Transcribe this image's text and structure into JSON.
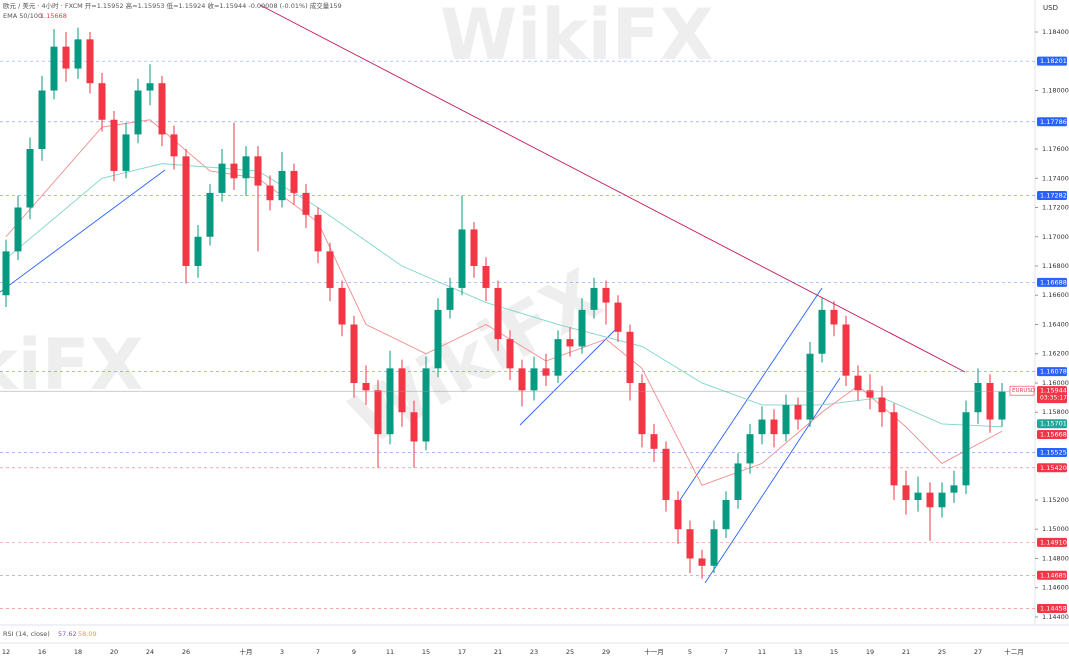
{
  "chart_data": {
    "type": "candlestick",
    "header": "欧元 / 美元 · 4小时 · FXCM  开=1.15952 高=1.15953 低=1.15924 收=1.15944 -0.00008 (-0.01%) 成交量159",
    "indicator": "EMA 50/100",
    "indicator_values": [
      "1.15668",
      "1.15701"
    ],
    "rsi_label": "RSI (14, close)",
    "rsi_values": [
      "57.62",
      "58.09"
    ],
    "currency": "USD",
    "symbol": "EURUSD",
    "countdown": "03:35:17",
    "watermark": "WikiFX",
    "up_color": "#089981",
    "down_color": "#f23645",
    "categories": [
      "12",
      null,
      null,
      "16",
      null,
      null,
      "18",
      null,
      null,
      "20",
      null,
      null,
      "24",
      null,
      null,
      "26",
      null,
      null,
      null,
      null,
      "十月",
      null,
      null,
      "3",
      null,
      null,
      "7",
      null,
      null,
      "9",
      null,
      null,
      "11",
      null,
      null,
      "15",
      null,
      null,
      "17",
      null,
      null,
      "21",
      null,
      null,
      "23",
      null,
      null,
      "25",
      null,
      null,
      "29",
      null,
      null,
      null,
      "十一月",
      null,
      null,
      "5",
      null,
      null,
      "7",
      null,
      null,
      "11",
      null,
      null,
      "13",
      null,
      null,
      "15",
      null,
      null,
      "19",
      null,
      null,
      "21",
      null,
      null,
      "25",
      null,
      null,
      "27",
      null,
      null,
      "十二月"
    ],
    "open": [
      1.166,
      1.169,
      1.172,
      1.176,
      1.18,
      1.183,
      1.1815,
      1.1835,
      1.1805,
      1.178,
      1.1745,
      1.177,
      1.18,
      1.1805,
      1.177,
      1.1755,
      1.168,
      1.17,
      1.173,
      1.175,
      1.174,
      1.1755,
      1.1735,
      1.1725,
      1.1745,
      1.173,
      1.1715,
      1.169,
      1.1665,
      1.164,
      1.16,
      1.1595,
      1.1565,
      1.161,
      1.158,
      1.156,
      1.161,
      1.165,
      1.1665,
      1.1705,
      1.168,
      1.1665,
      1.163,
      1.161,
      1.1595,
      1.161,
      1.1605,
      1.163,
      1.1625,
      1.165,
      1.1665,
      1.1655,
      1.1635,
      1.16,
      1.1565,
      1.1555,
      1.152,
      1.15,
      1.148,
      1.1475,
      1.15,
      1.152,
      1.1545,
      1.1565,
      1.1575,
      1.1565,
      1.1585,
      1.1575,
      1.162,
      1.165,
      1.164,
      1.1605,
      1.1595,
      1.159,
      1.158,
      1.153,
      1.152,
      1.1525,
      1.1515,
      1.1525,
      1.153,
      1.158,
      1.16,
      1.1575,
      null
    ],
    "high": [
      1.1698,
      1.1728,
      1.1768,
      1.181,
      1.1842,
      1.184,
      1.1843,
      1.184,
      1.1812,
      1.1786,
      1.1778,
      1.1808,
      1.1818,
      1.181,
      1.1776,
      1.176,
      1.1708,
      1.1736,
      1.176,
      1.1778,
      1.1762,
      1.1762,
      1.1742,
      1.1758,
      1.175,
      1.1736,
      1.172,
      1.1696,
      1.167,
      1.1646,
      1.1612,
      1.1602,
      1.1622,
      1.1616,
      1.1588,
      1.1618,
      1.1658,
      1.1672,
      1.1728,
      1.171,
      1.1686,
      1.167,
      1.1636,
      1.1616,
      1.1618,
      1.162,
      1.1636,
      1.1638,
      1.1658,
      1.1672,
      1.167,
      1.166,
      1.164,
      1.1606,
      1.1572,
      1.156,
      1.1526,
      1.1506,
      1.1486,
      1.1506,
      1.1526,
      1.1552,
      1.1572,
      1.1584,
      1.1582,
      1.1592,
      1.159,
      1.1628,
      1.1658,
      1.1656,
      1.1646,
      1.1612,
      1.1606,
      1.1598,
      1.1586,
      1.154,
      1.1536,
      1.1532,
      1.1532,
      1.154,
      1.1588,
      1.161,
      1.1606,
      1.16,
      null
    ],
    "low": [
      1.1652,
      1.1684,
      1.1712,
      1.1752,
      1.1794,
      1.1806,
      1.1808,
      1.1798,
      1.1772,
      1.1738,
      1.174,
      1.1764,
      1.179,
      1.1762,
      1.1746,
      1.1668,
      1.1672,
      1.1694,
      1.1724,
      1.1732,
      1.1728,
      1.169,
      1.1718,
      1.172,
      1.1722,
      1.1706,
      1.1682,
      1.1656,
      1.1632,
      1.159,
      1.1585,
      1.1542,
      1.1558,
      1.157,
      1.1542,
      1.1554,
      1.1604,
      1.1644,
      1.166,
      1.1672,
      1.1656,
      1.1622,
      1.1602,
      1.1584,
      1.1588,
      1.1598,
      1.16,
      1.1618,
      1.162,
      1.1644,
      1.164,
      1.1628,
      1.1588,
      1.1556,
      1.1546,
      1.1512,
      1.149,
      1.147,
      1.1466,
      1.147,
      1.1494,
      1.1514,
      1.1538,
      1.1558,
      1.1556,
      1.156,
      1.1568,
      1.157,
      1.1614,
      1.1632,
      1.1598,
      1.1588,
      1.1582,
      1.157,
      1.152,
      1.151,
      1.1512,
      1.1492,
      1.1508,
      1.1518,
      1.1524,
      1.1572,
      1.1566,
      1.157,
      null
    ],
    "close": [
      1.169,
      1.172,
      1.176,
      1.18,
      1.183,
      1.1815,
      1.1835,
      1.1805,
      1.178,
      1.1745,
      1.177,
      1.18,
      1.1805,
      1.177,
      1.1755,
      1.168,
      1.17,
      1.173,
      1.175,
      1.174,
      1.1755,
      1.1735,
      1.1725,
      1.1745,
      1.173,
      1.1715,
      1.169,
      1.1665,
      1.164,
      1.16,
      1.1595,
      1.1565,
      1.161,
      1.158,
      1.156,
      1.161,
      1.165,
      1.1665,
      1.1705,
      1.168,
      1.1665,
      1.163,
      1.161,
      1.1595,
      1.161,
      1.1605,
      1.163,
      1.1625,
      1.165,
      1.1665,
      1.1655,
      1.1635,
      1.16,
      1.1565,
      1.1555,
      1.152,
      1.15,
      1.148,
      1.1475,
      1.15,
      1.152,
      1.1545,
      1.1565,
      1.1575,
      1.1565,
      1.1585,
      1.1575,
      1.162,
      1.165,
      1.164,
      1.1605,
      1.1595,
      1.159,
      1.158,
      1.153,
      1.152,
      1.1525,
      1.1515,
      1.1525,
      1.153,
      1.158,
      1.16,
      1.1575,
      1.1594,
      null
    ],
    "ema_lines": [
      {
        "color": "#f28b8b",
        "x": [
          0,
          8,
          12,
          17,
          21,
          26,
          30,
          35,
          40,
          45,
          50,
          53,
          58,
          63,
          68,
          71,
          75,
          78,
          83
        ],
        "values": [
          1.17,
          1.1775,
          1.178,
          1.1745,
          1.174,
          1.171,
          1.164,
          1.162,
          1.164,
          1.1615,
          1.163,
          1.161,
          1.153,
          1.1545,
          1.158,
          1.1598,
          1.157,
          1.1545,
          1.1567
        ]
      },
      {
        "color": "#7fd6c8",
        "x": [
          0,
          8,
          13,
          21,
          26,
          33,
          40,
          46,
          53,
          58,
          63,
          68,
          73,
          78,
          83
        ],
        "values": [
          1.1685,
          1.174,
          1.175,
          1.1745,
          1.172,
          1.168,
          1.1655,
          1.164,
          1.1625,
          1.16,
          1.1585,
          1.1585,
          1.159,
          1.1572,
          1.157
        ]
      }
    ],
    "ylim": [
      1.14345,
      1.18619
    ],
    "yticks": [
      {
        "value": 1.184,
        "label": "1.18400"
      },
      {
        "value": 1.18,
        "label": "1.18000"
      },
      {
        "value": 1.176,
        "label": "1.17600"
      },
      {
        "value": 1.174,
        "label": "1.17400"
      },
      {
        "value": 1.172,
        "label": "1.17200"
      },
      {
        "value": 1.17,
        "label": "1.17000"
      },
      {
        "value": 1.168,
        "label": "1.16800"
      },
      {
        "value": 1.166,
        "label": "1.16600"
      },
      {
        "value": 1.164,
        "label": "1.16400"
      },
      {
        "value": 1.162,
        "label": "1.16200"
      },
      {
        "value": 1.16,
        "label": "1.16000"
      },
      {
        "value": 1.158,
        "label": "1.15800"
      },
      {
        "value": 1.152,
        "label": "1.15200"
      },
      {
        "value": 1.15,
        "label": "1.15000"
      },
      {
        "value": 1.148,
        "label": "1.14800"
      },
      {
        "value": 1.146,
        "label": "1.14600"
      },
      {
        "value": 1.144,
        "label": "1.14400"
      }
    ],
    "levels": [
      {
        "value": 1.18201,
        "label": "1.18201",
        "color": "#2962ff"
      },
      {
        "value": 1.17786,
        "label": "1.17786",
        "color": "#2962ff"
      },
      {
        "value": 1.17282,
        "label": "1.17282",
        "color": "#2962ff"
      },
      {
        "value": 1.16688,
        "label": "1.16688",
        "color": "#2962ff"
      },
      {
        "value": 1.16078,
        "label": "1.16078",
        "color": "#2962ff"
      },
      {
        "value": 1.15525,
        "label": "1.15525",
        "color": "#2962ff"
      },
      {
        "value": 1.1542,
        "label": "1.15420",
        "color": "#f23645"
      },
      {
        "value": 1.1491,
        "label": "1.14910",
        "color": "#f23645"
      },
      {
        "value": 1.14685,
        "label": "1.14685",
        "color": "#f23645"
      },
      {
        "value": 1.14458,
        "label": "1.14458",
        "color": "#f23645"
      }
    ],
    "ema_labels": [
      {
        "value": 1.15701,
        "label": "1.15701",
        "color": "#26a69a"
      },
      {
        "value": 1.15668,
        "label": "1.15668",
        "color": "#f23645"
      }
    ],
    "last_price": {
      "value": 1.15944,
      "label": "1.15944",
      "color": "#f23645"
    }
  }
}
